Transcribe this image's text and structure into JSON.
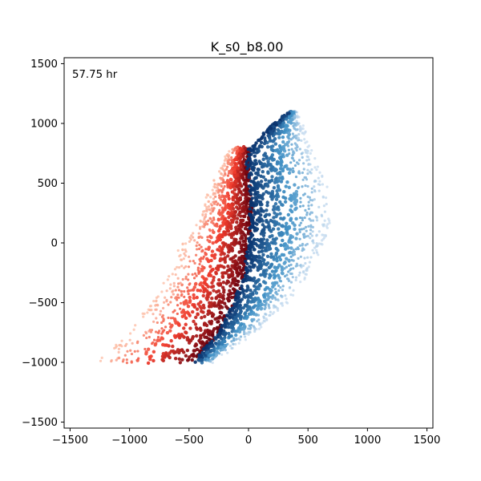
{
  "chart_data": {
    "type": "scatter",
    "title": "K_s0_b8.00",
    "xlabel": "",
    "ylabel": "",
    "xlim": [
      -1550,
      1550
    ],
    "ylim": [
      -1550,
      1550
    ],
    "xticks": [
      -1500,
      -1000,
      -500,
      0,
      500,
      1000,
      1500
    ],
    "yticks": [
      -1500,
      -1000,
      -500,
      0,
      500,
      1000,
      1500
    ],
    "xtick_labels": [
      "−1500",
      "−1000",
      "−500",
      "0",
      "500",
      "1000",
      "1500"
    ],
    "ytick_labels": [
      "−1500",
      "−1000",
      "−500",
      "0",
      "500",
      "1000",
      "1500"
    ],
    "annotation": "57.75 hr",
    "grid": false,
    "colormaps": {
      "left_group": "Reds",
      "right_group": "Blues"
    },
    "colors": {
      "red_dark": "#67000d",
      "red_mid": "#ef3b2c",
      "red_light": "#fcbba1",
      "blue_dark": "#08306b",
      "blue_mid": "#4292c6",
      "blue_light": "#c6dbef"
    },
    "series": [
      {
        "group": "left",
        "colormap": "Reds",
        "point_count": 1400,
        "boundary_x": [
          -450,
          -250,
          -120,
          -30,
          0,
          20,
          20,
          0,
          -10,
          15
        ],
        "boundary_y": [
          -1000,
          -750,
          -500,
          -250,
          0,
          150,
          300,
          500,
          700,
          800
        ],
        "outer_x": [
          -1280,
          -1000,
          -820,
          -650,
          -560,
          -460,
          -380,
          -300,
          -200,
          -150
        ],
        "outer_y": [
          -1000,
          -750,
          -500,
          -250,
          0,
          150,
          300,
          500,
          700,
          800
        ]
      },
      {
        "group": "right",
        "colormap": "Blues",
        "point_count": 1600,
        "boundary_x": [
          -450,
          -250,
          -120,
          -30,
          0,
          20,
          20,
          0,
          -10,
          15,
          220,
          350
        ],
        "boundary_y": [
          -1000,
          -750,
          -500,
          -250,
          0,
          150,
          300,
          500,
          700,
          800,
          1000,
          1100
        ],
        "outer_x": [
          -300,
          60,
          320,
          520,
          640,
          690,
          700,
          660,
          580,
          520,
          450,
          400
        ],
        "outer_y": [
          -1000,
          -750,
          -500,
          -250,
          0,
          150,
          300,
          500,
          700,
          800,
          1000,
          1100
        ]
      }
    ]
  }
}
